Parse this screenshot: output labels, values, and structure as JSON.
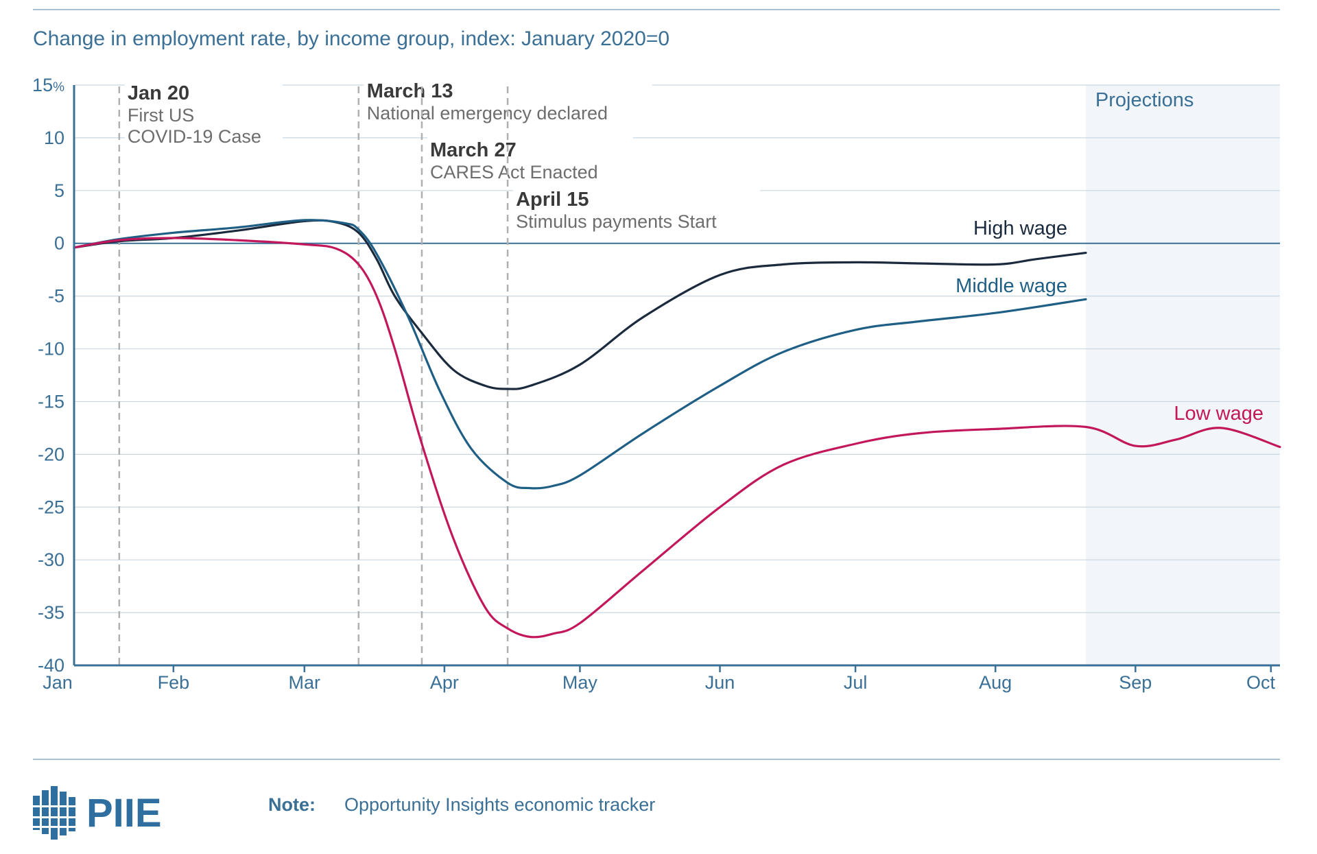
{
  "chart_data": {
    "type": "line",
    "title": "Change in employment rate, by income group, index: January 2020=0",
    "y_unit": "%",
    "ylim": [
      -40,
      15
    ],
    "yticks": [
      15,
      10,
      5,
      0,
      -5,
      -10,
      -15,
      -20,
      -25,
      -30,
      -35,
      -40
    ],
    "xlim": [
      "2020-01-10",
      "2020-10-03"
    ],
    "xticks": [
      {
        "label": "Jan",
        "date": "2020-01-01"
      },
      {
        "label": "Feb",
        "date": "2020-02-01"
      },
      {
        "label": "Mar",
        "date": "2020-03-01"
      },
      {
        "label": "Apr",
        "date": "2020-04-01"
      },
      {
        "label": "May",
        "date": "2020-05-01"
      },
      {
        "label": "Jun",
        "date": "2020-06-01"
      },
      {
        "label": "Jul",
        "date": "2020-07-01"
      },
      {
        "label": "Aug",
        "date": "2020-08-01"
      },
      {
        "label": "Sep",
        "date": "2020-09-01"
      },
      {
        "label": "Oct",
        "date": "2020-10-01"
      }
    ],
    "grid": true,
    "projection_region": {
      "label": "Projections",
      "start": "2020-08-21",
      "end": "2020-10-03"
    },
    "annotations": [
      {
        "date": "2020-01-20",
        "title": "Jan 20",
        "lines": [
          "First US",
          "COVID-19 Case"
        ]
      },
      {
        "date": "2020-03-13",
        "title": "March 13",
        "lines": [
          "National emergency declared"
        ]
      },
      {
        "date": "2020-03-27",
        "title": "March 27",
        "lines": [
          "CARES Act Enacted"
        ]
      },
      {
        "date": "2020-04-15",
        "title": "April 15",
        "lines": [
          "Stimulus payments Start"
        ]
      }
    ],
    "series": [
      {
        "name": "High wage",
        "color": "#1b2a3d",
        "points": [
          [
            "2020-01-10",
            -0.4
          ],
          [
            "2020-01-20",
            0.2
          ],
          [
            "2020-02-01",
            0.5
          ],
          [
            "2020-02-15",
            1.2
          ],
          [
            "2020-03-01",
            2.1
          ],
          [
            "2020-03-08",
            2.0
          ],
          [
            "2020-03-13",
            1.0
          ],
          [
            "2020-03-17",
            -1.5
          ],
          [
            "2020-03-21",
            -5.0
          ],
          [
            "2020-03-27",
            -8.5
          ],
          [
            "2020-04-03",
            -12.0
          ],
          [
            "2020-04-10",
            -13.5
          ],
          [
            "2020-04-15",
            -13.8
          ],
          [
            "2020-04-20",
            -13.5
          ],
          [
            "2020-05-01",
            -11.5
          ],
          [
            "2020-05-15",
            -7.0
          ],
          [
            "2020-06-01",
            -3.0
          ],
          [
            "2020-06-15",
            -2.0
          ],
          [
            "2020-07-01",
            -1.8
          ],
          [
            "2020-07-15",
            -1.9
          ],
          [
            "2020-08-01",
            -2.0
          ],
          [
            "2020-08-10",
            -1.5
          ],
          [
            "2020-08-21",
            -0.9
          ]
        ]
      },
      {
        "name": "Middle wage",
        "color": "#1f5f86",
        "points": [
          [
            "2020-01-10",
            -0.4
          ],
          [
            "2020-01-20",
            0.4
          ],
          [
            "2020-02-01",
            1.0
          ],
          [
            "2020-02-15",
            1.5
          ],
          [
            "2020-03-01",
            2.2
          ],
          [
            "2020-03-10",
            1.9
          ],
          [
            "2020-03-13",
            1.3
          ],
          [
            "2020-03-17",
            -1.0
          ],
          [
            "2020-03-24",
            -7.0
          ],
          [
            "2020-03-31",
            -14.0
          ],
          [
            "2020-04-07",
            -19.5
          ],
          [
            "2020-04-15",
            -22.7
          ],
          [
            "2020-04-20",
            -23.2
          ],
          [
            "2020-04-25",
            -23.0
          ],
          [
            "2020-05-01",
            -22.0
          ],
          [
            "2020-05-15",
            -18.0
          ],
          [
            "2020-06-01",
            -13.5
          ],
          [
            "2020-06-15",
            -10.3
          ],
          [
            "2020-07-01",
            -8.2
          ],
          [
            "2020-07-15",
            -7.4
          ],
          [
            "2020-08-01",
            -6.6
          ],
          [
            "2020-08-21",
            -5.3
          ]
        ]
      },
      {
        "name": "Low wage",
        "color": "#c2185b",
        "points": [
          [
            "2020-01-10",
            -0.4
          ],
          [
            "2020-01-20",
            0.3
          ],
          [
            "2020-02-01",
            0.5
          ],
          [
            "2020-02-15",
            0.3
          ],
          [
            "2020-03-01",
            -0.1
          ],
          [
            "2020-03-08",
            -0.5
          ],
          [
            "2020-03-13",
            -2.0
          ],
          [
            "2020-03-17",
            -5.0
          ],
          [
            "2020-03-21",
            -10.0
          ],
          [
            "2020-03-27",
            -19.0
          ],
          [
            "2020-04-03",
            -28.0
          ],
          [
            "2020-04-10",
            -34.5
          ],
          [
            "2020-04-15",
            -36.5
          ],
          [
            "2020-04-20",
            -37.3
          ],
          [
            "2020-04-25",
            -37.0
          ],
          [
            "2020-05-01",
            -36.0
          ],
          [
            "2020-05-15",
            -31.0
          ],
          [
            "2020-06-01",
            -25.0
          ],
          [
            "2020-06-15",
            -21.0
          ],
          [
            "2020-07-01",
            -19.0
          ],
          [
            "2020-07-15",
            -18.0
          ],
          [
            "2020-08-01",
            -17.6
          ],
          [
            "2020-08-21",
            -17.4
          ],
          [
            "2020-09-01",
            -19.2
          ],
          [
            "2020-09-10",
            -18.6
          ],
          [
            "2020-09-20",
            -17.5
          ],
          [
            "2020-10-03",
            -19.3
          ]
        ]
      }
    ]
  },
  "note": {
    "label": "Note:",
    "text": "Opportunity Insights economic tracker"
  },
  "logo": {
    "text": "PIIE"
  },
  "colors": {
    "accent": "#3a6f96",
    "grid": "#c9d7e3",
    "projection_bg": "#f2f5f9",
    "annotation_line": "#b0b0b0"
  }
}
